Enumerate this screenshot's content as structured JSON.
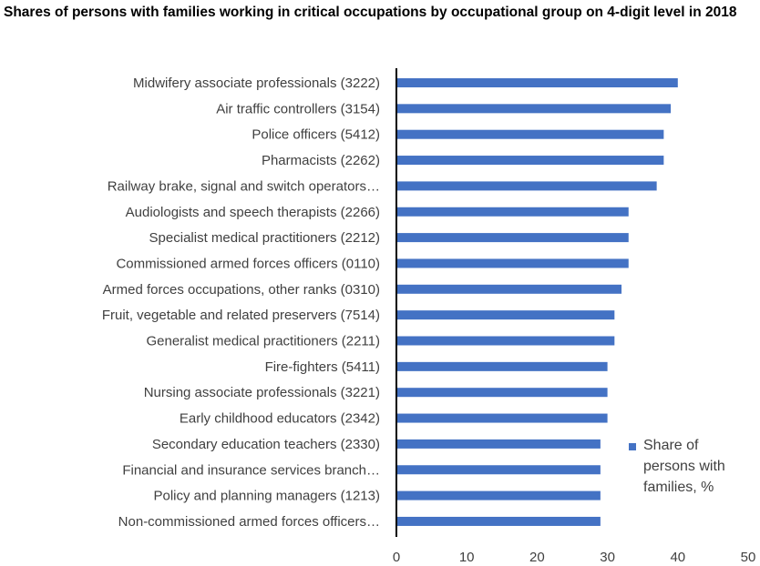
{
  "chart_data": {
    "type": "bar",
    "orientation": "horizontal",
    "title": "Shares of persons with families working in critical occupations by occupational group on 4-digit level in 2018",
    "categories": [
      "Midwifery associate professionals (3222)",
      "Air traffic controllers (3154)",
      "Police officers (5412)",
      "Pharmacists (2262)",
      "Railway brake, signal and switch operators…",
      "Audiologists and speech therapists (2266)",
      "Specialist medical practitioners (2212)",
      "Commissioned armed forces officers (0110)",
      "Armed forces occupations, other ranks (0310)",
      "Fruit, vegetable and related preservers (7514)",
      "Generalist medical practitioners (2211)",
      "Fire-fighters (5411)",
      "Nursing associate professionals (3221)",
      "Early childhood educators (2342)",
      "Secondary education teachers (2330)",
      "Financial and insurance services branch…",
      "Policy and planning managers (1213)",
      "Non-commissioned armed forces officers…"
    ],
    "series": [
      {
        "name": "Share of persons with families, %",
        "color": "#4472C4",
        "values": [
          40,
          39,
          38,
          38,
          37,
          33,
          33,
          33,
          32,
          31,
          31,
          30,
          30,
          30,
          29,
          29,
          29,
          29
        ]
      }
    ],
    "xlim": [
      0,
      50
    ],
    "xticks": [
      "0",
      "10",
      "20",
      "30",
      "40",
      "50"
    ],
    "xlabel": "",
    "ylabel": "",
    "grid": false,
    "legend_position": "right-bottom"
  }
}
